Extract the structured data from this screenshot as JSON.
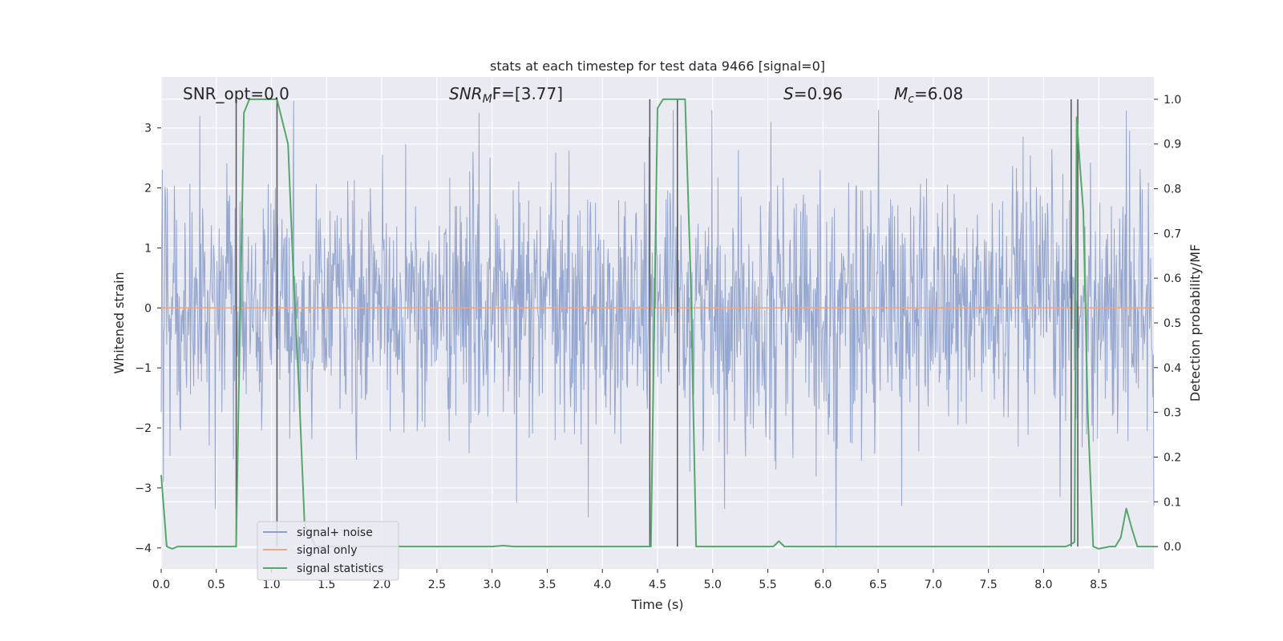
{
  "chart_data": {
    "type": "line",
    "title": "stats at each timestep for test data 9466 [signal=0]",
    "xlabel": "Time (s)",
    "ylabel": "Whitened strain",
    "y2label": "Detection probability/MF",
    "xlim": [
      0.0,
      9.0
    ],
    "ylim": [
      -4.35,
      3.85
    ],
    "y2lim": [
      -0.05,
      1.05
    ],
    "xticks": [
      0.0,
      0.5,
      1.0,
      1.5,
      2.0,
      2.5,
      3.0,
      3.5,
      4.0,
      4.5,
      5.0,
      5.5,
      6.0,
      6.5,
      7.0,
      7.5,
      8.0,
      8.5
    ],
    "xtick_labels": [
      "0.0",
      "0.5",
      "1.0",
      "1.5",
      "2.0",
      "2.5",
      "3.0",
      "3.5",
      "4.0",
      "4.5",
      "5.0",
      "5.5",
      "6.0",
      "6.5",
      "7.0",
      "7.5",
      "8.0",
      "8.5"
    ],
    "yticks": [
      -4,
      -3,
      -2,
      -1,
      0,
      1,
      2,
      3
    ],
    "ytick_labels": [
      "−4",
      "−3",
      "−2",
      "−1",
      "0",
      "1",
      "2",
      "3"
    ],
    "y2ticks": [
      0.0,
      0.1,
      0.2,
      0.3,
      0.4,
      0.5,
      0.6,
      0.7,
      0.8,
      0.9,
      1.0
    ],
    "y2tick_labels": [
      "0.0",
      "0.1",
      "0.2",
      "0.3",
      "0.4",
      "0.5",
      "0.6",
      "0.7",
      "0.8",
      "0.9",
      "1.0"
    ],
    "grid": true,
    "legend_position": "lower-left",
    "annotations": {
      "snr_opt": "SNR_opt=0.0",
      "snr_mf_base": "SNR",
      "snr_mf_sub": "M",
      "snr_mf_rest": "F=[3.77]",
      "s_var": "S",
      "s_rest": "=0.96",
      "mc_base": "M",
      "mc_sub": "c",
      "mc_rest": "=6.08"
    },
    "series": [
      {
        "name": "signal+ noise",
        "color": "#8da0cb",
        "kind": "noise",
        "n_samples": 1800,
        "approx_range": [
          -4.0,
          3.3
        ],
        "notable_extremes": [
          [
            0.01,
            2.3
          ],
          [
            0.02,
            -2.9
          ],
          [
            0.35,
            3.2
          ],
          [
            0.49,
            -3.35
          ],
          [
            1.2,
            3.45
          ],
          [
            2.88,
            3.25
          ],
          [
            3.22,
            -3.25
          ],
          [
            4.42,
            2.85
          ],
          [
            5.11,
            -3.35
          ],
          [
            5.53,
            3.1
          ],
          [
            6.12,
            -4.0
          ],
          [
            8.78,
            2.95
          ],
          [
            9.0,
            -3.3
          ]
        ]
      },
      {
        "name": "signal only",
        "color": "#e5a98e",
        "x": [
          0.0,
          9.0
        ],
        "y": [
          0.0,
          0.0
        ]
      },
      {
        "name": "signal statistics",
        "color": "#55a868",
        "axis": "right",
        "x": [
          0.0,
          0.05,
          0.1,
          0.15,
          0.2,
          0.3,
          0.4,
          0.5,
          0.6,
          0.68,
          0.7,
          0.75,
          0.8,
          0.85,
          0.9,
          0.95,
          1.0,
          1.05,
          1.1,
          1.15,
          1.2,
          1.25,
          1.3,
          1.4,
          2.0,
          3.0,
          3.1,
          3.2,
          4.0,
          4.3,
          4.44,
          4.5,
          4.55,
          4.6,
          4.65,
          4.7,
          4.75,
          4.8,
          4.85,
          5.0,
          5.5,
          5.55,
          5.6,
          5.65,
          5.7,
          6.0,
          7.0,
          8.0,
          8.2,
          8.25,
          8.28,
          8.3,
          8.33,
          8.36,
          8.4,
          8.45,
          8.5,
          8.6,
          8.65,
          8.7,
          8.75,
          8.8,
          8.85,
          9.0
        ],
        "y": [
          0.16,
          0.0,
          -0.005,
          0.0,
          0.0,
          0.0,
          0.0,
          0.0,
          0.0,
          0.0,
          0.3,
          0.97,
          1.0,
          1.0,
          1.0,
          1.0,
          1.0,
          1.0,
          0.95,
          0.9,
          0.6,
          0.35,
          0.05,
          0.0,
          0.0,
          0.0,
          0.002,
          0.0,
          0.0,
          0.0,
          0.0,
          0.98,
          1.0,
          1.0,
          1.0,
          1.0,
          1.0,
          0.6,
          0.0,
          0.0,
          0.0,
          0.0,
          0.012,
          0.0,
          0.0,
          0.0,
          0.0,
          0.0,
          0.0,
          0.005,
          0.01,
          0.96,
          0.85,
          0.75,
          0.3,
          0.0,
          -0.005,
          0.0,
          0.0,
          0.02,
          0.085,
          0.04,
          0.0,
          0.0
        ]
      }
    ],
    "vertical_lines": [
      0.68,
      1.05,
      4.43,
      4.68,
      8.25,
      8.31
    ]
  },
  "legend": {
    "items": [
      {
        "label": "signal+ noise",
        "color": "#8da0cb"
      },
      {
        "label": "signal only",
        "color": "#e5a98e"
      },
      {
        "label": "signal statistics",
        "color": "#55a868"
      }
    ]
  },
  "colors": {
    "plot_background": "#eaeaf2",
    "grid": "#ffffff",
    "vline": "#555555"
  }
}
